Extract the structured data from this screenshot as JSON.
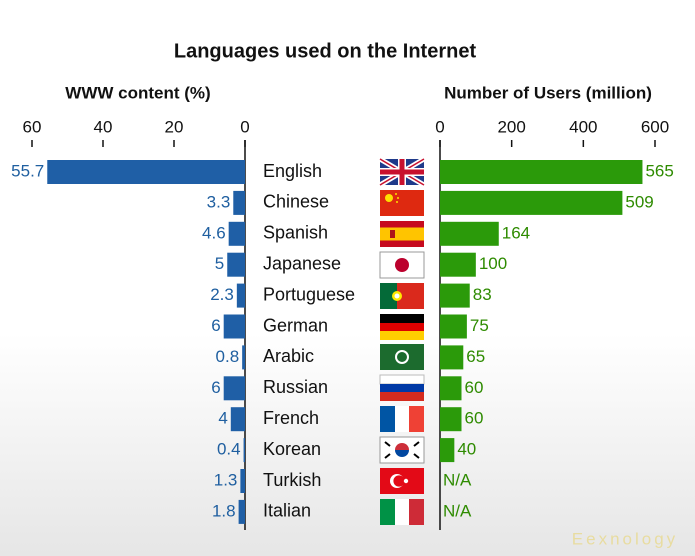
{
  "title": "Languages used on the Internet",
  "watermark": "Eexnology",
  "chart_data": [
    {
      "type": "bar",
      "orientation": "horizontal",
      "title": "WWW content (%)",
      "categories": [
        "English",
        "Chinese",
        "Spanish",
        "Japanese",
        "Portuguese",
        "German",
        "Arabic",
        "Russian",
        "French",
        "Korean",
        "Turkish",
        "Italian"
      ],
      "values": [
        55.7,
        3.3,
        4.6,
        5,
        2.3,
        6,
        0.8,
        6,
        4,
        0.4,
        1.3,
        1.8
      ],
      "color": "#1f5fa6",
      "label_color": "#1f5fa0",
      "xlim": [
        60,
        0
      ],
      "xticks": [
        60,
        40,
        20,
        0
      ]
    },
    {
      "type": "bar",
      "orientation": "horizontal",
      "title": "Number of Users (million)",
      "values": [
        565,
        509,
        164,
        100,
        83,
        75,
        65,
        60,
        60,
        40,
        null,
        null
      ],
      "value_labels": [
        "565",
        "509",
        "164",
        "100",
        "83",
        "75",
        "65",
        "60",
        "60",
        "40",
        "N/A",
        "N/A"
      ],
      "color": "#2b9a0a",
      "label_color": "#2e8b00",
      "xlim": [
        0,
        600
      ],
      "xticks": [
        0,
        200,
        400,
        600
      ]
    }
  ]
}
